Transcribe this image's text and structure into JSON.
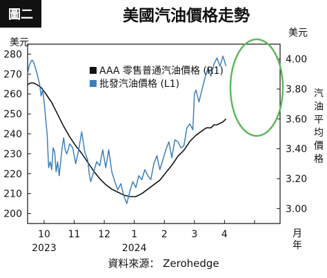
{
  "figure": {
    "badge": "圖二",
    "title": "美國汽油價格走勢",
    "source": "資料來源： Zerohedge"
  },
  "chart_data": {
    "type": "line",
    "title": "美國汽油價格走勢",
    "left_axis": {
      "unit": "美元",
      "range": [
        195,
        285
      ],
      "ticks": [
        200,
        210,
        220,
        230,
        240,
        250,
        260,
        270,
        280
      ],
      "tick_labels": [
        "200",
        "210",
        "220",
        "230",
        "240",
        "250",
        "260",
        "270",
        "280"
      ]
    },
    "right_axis": {
      "unit": "美元",
      "label": "汽油平均價格",
      "range": [
        2.9,
        4.1
      ],
      "ticks": [
        3.0,
        3.2,
        3.4,
        3.6,
        3.8,
        4.0
      ],
      "tick_labels": [
        "3.00",
        "3.20",
        "3.40",
        "3.60",
        "3.80",
        "4.00"
      ]
    },
    "x_axis": {
      "unit": "月\n年",
      "unit_chars": [
        "月",
        "年"
      ],
      "range": [
        0,
        8.4
      ],
      "ticks": [
        0.55,
        1.55,
        2.55,
        3.55,
        4.55,
        5.55,
        6.55,
        7.55
      ],
      "tick_labels": [
        "10",
        "11",
        "12",
        "1",
        "2",
        "3",
        "4",
        ""
      ],
      "year_labels": [
        {
          "x": 0.55,
          "text": "2023"
        },
        {
          "x": 3.55,
          "text": "2024"
        }
      ]
    },
    "legend": {
      "placement": "top-center",
      "entries": [
        "AAA 零售普通汽油價格 (R1)",
        "批發汽油價格 (L1)"
      ]
    },
    "series": [
      {
        "name": "AAA 零售普通汽油價格 (R1)",
        "axis": "right",
        "color": "#111111",
        "x": [
          0.0,
          0.1,
          0.2,
          0.3,
          0.45,
          0.6,
          0.8,
          1.0,
          1.2,
          1.4,
          1.6,
          1.8,
          2.0,
          2.2,
          2.4,
          2.6,
          2.8,
          3.0,
          3.2,
          3.4,
          3.6,
          3.8,
          4.0,
          4.2,
          4.4,
          4.6,
          4.8,
          5.0,
          5.2,
          5.4,
          5.6,
          5.8,
          5.95,
          6.1,
          6.2,
          6.3,
          6.4,
          6.5,
          6.6
        ],
        "values": [
          3.83,
          3.84,
          3.84,
          3.83,
          3.81,
          3.77,
          3.71,
          3.63,
          3.55,
          3.48,
          3.42,
          3.37,
          3.31,
          3.25,
          3.2,
          3.16,
          3.13,
          3.11,
          3.09,
          3.08,
          3.08,
          3.1,
          3.13,
          3.16,
          3.19,
          3.24,
          3.29,
          3.35,
          3.39,
          3.45,
          3.49,
          3.52,
          3.54,
          3.54,
          3.56,
          3.56,
          3.57,
          3.58,
          3.6
        ]
      },
      {
        "name": "批發汽油價格 (L1)",
        "axis": "left",
        "color": "#3b7fb8",
        "x": [
          0.0,
          0.05,
          0.1,
          0.15,
          0.2,
          0.3,
          0.4,
          0.45,
          0.5,
          0.55,
          0.6,
          0.65,
          0.7,
          0.75,
          0.8,
          0.85,
          0.9,
          0.95,
          1.0,
          1.05,
          1.1,
          1.15,
          1.2,
          1.25,
          1.3,
          1.35,
          1.4,
          1.5,
          1.6,
          1.7,
          1.8,
          1.9,
          2.0,
          2.05,
          2.1,
          2.2,
          2.3,
          2.4,
          2.5,
          2.6,
          2.7,
          2.8,
          2.9,
          3.0,
          3.1,
          3.2,
          3.3,
          3.4,
          3.5,
          3.6,
          3.7,
          3.8,
          3.9,
          4.0,
          4.1,
          4.2,
          4.3,
          4.4,
          4.5,
          4.6,
          4.7,
          4.8,
          4.9,
          5.0,
          5.1,
          5.2,
          5.3,
          5.4,
          5.5,
          5.55,
          5.6,
          5.7,
          5.8,
          5.9,
          6.0,
          6.1,
          6.2,
          6.3,
          6.4,
          6.5,
          6.6
        ],
        "values": [
          270,
          274,
          276,
          277,
          276,
          271,
          265,
          259,
          262,
          256,
          248,
          240,
          223,
          226,
          222,
          233,
          231,
          221,
          226,
          219,
          226,
          233,
          238,
          232,
          230,
          232,
          235,
          233,
          225,
          232,
          241,
          231,
          227,
          220,
          216,
          221,
          226,
          224,
          232,
          223,
          232,
          221,
          216,
          212,
          215,
          209,
          205,
          211,
          216,
          213,
          219,
          217,
          222,
          219,
          217,
          225,
          229,
          222,
          227,
          232,
          236,
          228,
          237,
          236,
          233,
          234,
          243,
          245,
          242,
          260,
          262,
          256,
          262,
          268,
          273,
          269,
          275,
          278,
          274,
          279,
          274
        ]
      }
    ],
    "annotations": [
      {
        "type": "ellipse",
        "color": "#5cb85c",
        "description": ""
      }
    ]
  }
}
